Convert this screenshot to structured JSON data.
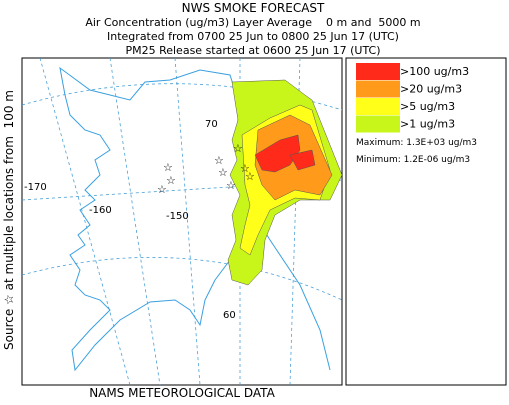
{
  "header": {
    "title": "NWS SMOKE FORECAST",
    "lines": [
      "Air Concentration (ug/m3) Layer Average    0 m and  5000 m",
      "Integrated from 0700 25 Jun to 0800 25 Jun 17 (UTC)",
      "PM25 Release started at 0600 25 Jun 17 (UTC)"
    ]
  },
  "legend": {
    "items": [
      {
        "label": ">100 ug/m3",
        "color": "#ff2a1a"
      },
      {
        "label": ">20 ug/m3",
        "color": "#ff9a1a"
      },
      {
        "label": ">5 ug/m3",
        "color": "#ffff1a"
      },
      {
        "label": ">1 ug/m3",
        "color": "#c8f51a"
      }
    ],
    "maximum": "Maximum: 1.3E+03 ug/m3",
    "minimum": "Minimum: 1.2E-06 ug/m3"
  },
  "map": {
    "grid_labels": [
      "70",
      "-170",
      "-160",
      "-150",
      "60"
    ]
  },
  "source_label": "Source ☆ at multiple locations from  100 m",
  "footer": "NAMS METEOROLOGICAL DATA"
}
